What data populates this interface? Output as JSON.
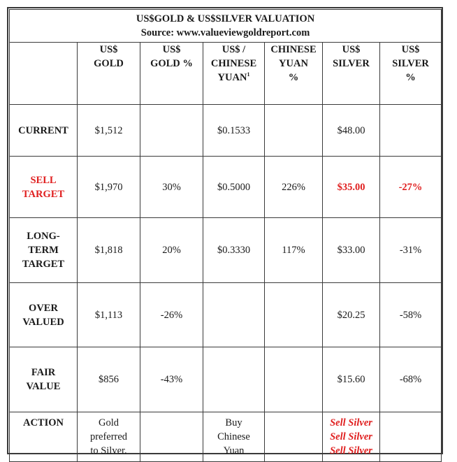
{
  "table": {
    "title": "US$GOLD & US$SILVER VALUATION",
    "source": "Source: www.valueviewgoldreport.com",
    "headers": [
      [],
      [
        "US$",
        "GOLD"
      ],
      [
        "US$",
        "GOLD %"
      ],
      [
        "US$ /",
        "CHINESE",
        "YUAN"
      ],
      [
        "CHINESE",
        "YUAN",
        "%"
      ],
      [
        "US$",
        "SILVER"
      ],
      [
        "US$",
        "SILVER",
        "%"
      ]
    ],
    "footnote_mark": "1",
    "rows": [
      {
        "label": [
          "CURRENT"
        ],
        "cells": [
          "$1,512",
          "",
          "$0.1533",
          "",
          "$48.00",
          ""
        ]
      },
      {
        "label": [
          "SELL",
          "TARGET"
        ],
        "cells": [
          "$1,970",
          "30%",
          "$0.5000",
          "226%",
          "$35.00",
          "-27%"
        ]
      },
      {
        "label": [
          "LONG-",
          "TERM",
          "TARGET"
        ],
        "cells": [
          "$1,818",
          "20%",
          "$0.3330",
          "117%",
          "$33.00",
          "-31%"
        ]
      },
      {
        "label": [
          "OVER",
          "VALUED"
        ],
        "cells": [
          "$1,113",
          "-26%",
          "",
          "",
          "$20.25",
          "-58%"
        ]
      },
      {
        "label": [
          "FAIR",
          "VALUE"
        ],
        "cells": [
          "$856",
          "-43%",
          "",
          "",
          "$15.60",
          "-68%"
        ]
      }
    ],
    "action": {
      "label": "ACTION",
      "gold": [
        "Gold",
        "preferred",
        "to Silver."
      ],
      "yuan": [
        "Buy",
        "Chinese",
        "Yuan"
      ],
      "silver": [
        "Sell Silver",
        "Sell Silver",
        "Sell Silver"
      ]
    },
    "colors": {
      "highlight_red": "#e02020",
      "border": "#3a3a3a"
    }
  }
}
